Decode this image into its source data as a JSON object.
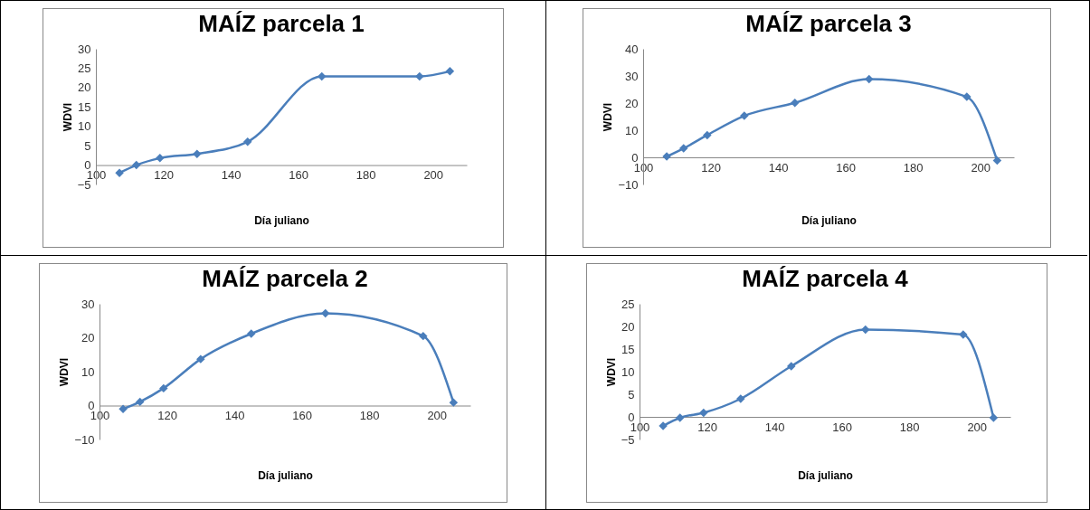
{
  "chart_data": [
    {
      "type": "line",
      "title": "MAÍZ parcela 1",
      "xlabel": "Día juliano",
      "ylabel": "WDVI",
      "x": [
        107,
        112,
        119,
        130,
        145,
        167,
        196,
        205
      ],
      "xlim": [
        100,
        210
      ],
      "xticks": [
        100,
        120,
        140,
        160,
        180,
        200
      ],
      "ylim": [
        -5,
        30
      ],
      "yticks": [
        -5,
        0,
        5,
        10,
        15,
        20,
        25,
        30
      ],
      "marker": "diamond",
      "series": [
        {
          "color": "#4a7ebb",
          "values": [
            -2,
            0,
            1.8,
            2.9,
            6,
            22.9,
            22.9,
            24.2
          ]
        }
      ]
    },
    {
      "type": "line",
      "title": "MAÍZ parcela 3",
      "xlabel": "Día juliano",
      "ylabel": "WDVI",
      "x": [
        107,
        112,
        119,
        130,
        145,
        167,
        196,
        205
      ],
      "xlim": [
        100,
        210
      ],
      "xticks": [
        100,
        120,
        140,
        160,
        180,
        200
      ],
      "ylim": [
        -10,
        40
      ],
      "yticks": [
        -10,
        0,
        10,
        20,
        30,
        40
      ],
      "marker": "diamond",
      "series": [
        {
          "color": "#4a7ebb",
          "values": [
            0.3,
            3.3,
            8.2,
            15.3,
            20.1,
            28.8,
            22.3,
            -1.2
          ]
        }
      ]
    },
    {
      "type": "line",
      "title": "MAÍZ parcela 2",
      "xlabel": "Día juliano",
      "ylabel": "WDVI",
      "x": [
        107,
        112,
        119,
        130,
        145,
        167,
        196,
        205
      ],
      "xlim": [
        100,
        210
      ],
      "xticks": [
        100,
        120,
        140,
        160,
        180,
        200
      ],
      "ylim": [
        -10,
        30
      ],
      "yticks": [
        -10,
        0,
        10,
        20,
        30
      ],
      "marker": "diamond",
      "series": [
        {
          "color": "#4a7ebb",
          "values": [
            -1,
            1.1,
            5.1,
            13.7,
            21.2,
            27.2,
            20.5,
            0.9
          ]
        }
      ]
    },
    {
      "type": "line",
      "title": "MAÍZ parcela 4",
      "xlabel": "Día juliano",
      "ylabel": "WDVI",
      "x": [
        107,
        112,
        119,
        130,
        145,
        167,
        196,
        205
      ],
      "xlim": [
        100,
        210
      ],
      "xticks": [
        100,
        120,
        140,
        160,
        180,
        200
      ],
      "ylim": [
        -5,
        25
      ],
      "yticks": [
        -5,
        0,
        5,
        10,
        15,
        20,
        25
      ],
      "marker": "diamond",
      "series": [
        {
          "color": "#4a7ebb",
          "values": [
            -2,
            -0.2,
            0.9,
            4,
            11.2,
            19.3,
            18.2,
            -0.2
          ]
        }
      ]
    }
  ]
}
